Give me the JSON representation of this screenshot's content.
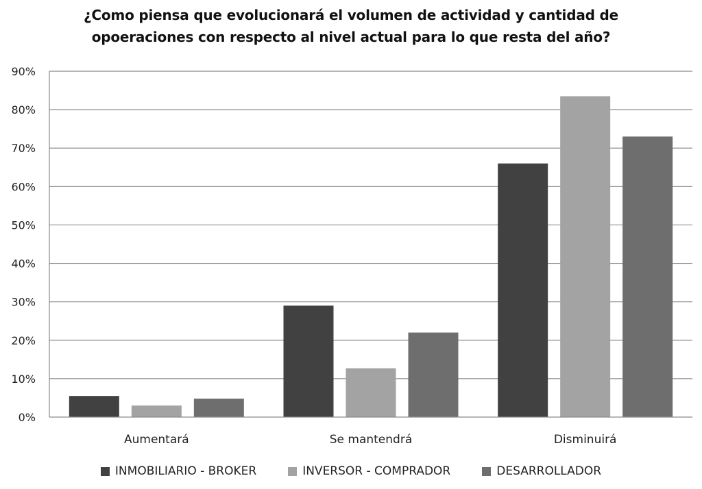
{
  "chart_data": {
    "type": "bar",
    "title_lines": [
      "¿Como piensa que evolucionará el volumen de actividad y cantidad de",
      "opoeraciones con respecto al nivel actual para lo que resta del año?"
    ],
    "categories": [
      "Aumentará",
      "Se mantendrá",
      "Disminuirá"
    ],
    "series": [
      {
        "name": "INMOBILIARIO - BROKER",
        "color": "#414141",
        "values": [
          5.5,
          29,
          66
        ]
      },
      {
        "name": "INVERSOR - COMPRADOR",
        "color": "#a3a3a3",
        "values": [
          3,
          12.7,
          83.5
        ]
      },
      {
        "name": "DESARROLLADOR",
        "color": "#6e6e6e",
        "values": [
          4.8,
          22,
          73
        ]
      }
    ],
    "y_ticks": [
      "0%",
      "10%",
      "20%",
      "30%",
      "40%",
      "50%",
      "60%",
      "70%",
      "80%",
      "90%"
    ],
    "ylim": [
      0,
      90
    ],
    "grid": true,
    "legend_position": "bottom"
  }
}
